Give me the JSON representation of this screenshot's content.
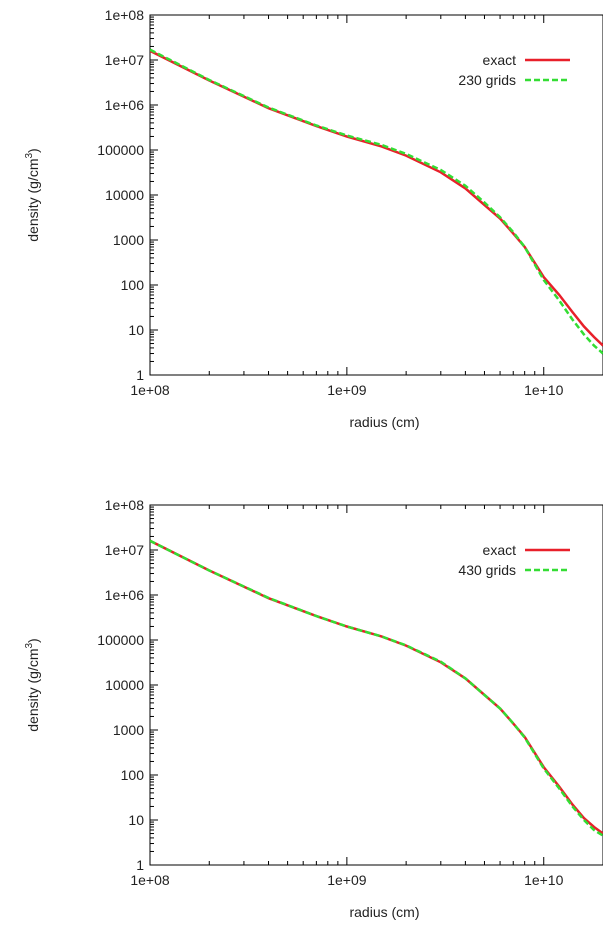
{
  "colors": {
    "exact": "#e8202a",
    "approx": "#33dd33",
    "frame": "#000000"
  },
  "chart_data": [
    {
      "type": "line",
      "xlabel": "radius (cm)",
      "ylabel": "density (g/cm",
      "ylabel_sup": "3",
      "ylabel_close": ")",
      "x_scale": "log",
      "y_scale": "log",
      "xlim": [
        100000000.0,
        20000000000.0
      ],
      "ylim": [
        1,
        100000000.0
      ],
      "x_ticks": [
        "1e+08",
        "1e+09",
        "1e+10"
      ],
      "y_ticks": [
        "1",
        "10",
        "100",
        "1000",
        "10000",
        "100000",
        "1e+06",
        "1e+07",
        "1e+08"
      ],
      "legend_position": "top-right",
      "series": [
        {
          "name": "exact",
          "style": "solid",
          "x": [
            100000000.0,
            200000000.0,
            400000000.0,
            700000000.0,
            1000000000.0,
            1500000000.0,
            2000000000.0,
            3000000000.0,
            4000000000.0,
            5000000000.0,
            6000000000.0,
            7000000000.0,
            8000000000.0,
            10000000000.0,
            12000000000.0,
            14000000000.0,
            16000000000.0,
            18000000000.0,
            20000000000.0
          ],
          "y": [
            16000000.0,
            3500000.0,
            850000.0,
            340000.0,
            200000.0,
            120000.0,
            75000.0,
            32000.0,
            14000.0,
            6000.0,
            3000.0,
            1400.0,
            700.0,
            150.0,
            60.0,
            25.0,
            12.0,
            7,
            4.5
          ]
        },
        {
          "name": "230 grids",
          "style": "dashed",
          "x": [
            100000000.0,
            200000000.0,
            400000000.0,
            700000000.0,
            1000000000.0,
            1500000000.0,
            2000000000.0,
            3000000000.0,
            4000000000.0,
            5000000000.0,
            6000000000.0,
            7000000000.0,
            8000000000.0,
            10000000000.0,
            12000000000.0,
            14000000000.0,
            16000000000.0,
            18000000000.0,
            20000000000.0
          ],
          "y": [
            17000000.0,
            3600000.0,
            880000.0,
            350000.0,
            210000.0,
            130000.0,
            82000.0,
            36000.0,
            16000.0,
            6800.0,
            3200.0,
            1500.0,
            700.0,
            130.0,
            45.0,
            17.0,
            8,
            4.5,
            3
          ]
        }
      ]
    },
    {
      "type": "line",
      "xlabel": "radius (cm)",
      "ylabel": "density (g/cm",
      "ylabel_sup": "3",
      "ylabel_close": ")",
      "x_scale": "log",
      "y_scale": "log",
      "xlim": [
        100000000.0,
        20000000000.0
      ],
      "ylim": [
        1,
        100000000.0
      ],
      "x_ticks": [
        "1e+08",
        "1e+09",
        "1e+10"
      ],
      "y_ticks": [
        "1",
        "10",
        "100",
        "1000",
        "10000",
        "100000",
        "1e+06",
        "1e+07",
        "1e+08"
      ],
      "legend_position": "top-right",
      "series": [
        {
          "name": "exact",
          "style": "solid",
          "x": [
            100000000.0,
            200000000.0,
            400000000.0,
            700000000.0,
            1000000000.0,
            1500000000.0,
            2000000000.0,
            3000000000.0,
            4000000000.0,
            5000000000.0,
            6000000000.0,
            7000000000.0,
            8000000000.0,
            10000000000.0,
            12000000000.0,
            14000000000.0,
            16000000000.0,
            18000000000.0,
            20000000000.0
          ],
          "y": [
            16000000.0,
            3500000.0,
            850000.0,
            340000.0,
            200000.0,
            120000.0,
            75000.0,
            32000.0,
            14000.0,
            6000.0,
            3000.0,
            1400.0,
            700.0,
            150.0,
            55.0,
            22.0,
            11.0,
            7,
            5
          ]
        },
        {
          "name": "430 grids",
          "style": "dashed",
          "x": [
            100000000.0,
            200000000.0,
            400000000.0,
            700000000.0,
            1000000000.0,
            1500000000.0,
            2000000000.0,
            3000000000.0,
            4000000000.0,
            5000000000.0,
            6000000000.0,
            7000000000.0,
            8000000000.0,
            10000000000.0,
            12000000000.0,
            14000000000.0,
            16000000000.0,
            18000000000.0,
            20000000000.0
          ],
          "y": [
            16000000.0,
            3500000.0,
            860000.0,
            340000.0,
            200000.0,
            120000.0,
            76000.0,
            33000.0,
            14000.0,
            6000.0,
            3000.0,
            1400.0,
            680.0,
            140.0,
            50.0,
            20.0,
            10.0,
            6,
            4.5
          ]
        }
      ]
    }
  ]
}
